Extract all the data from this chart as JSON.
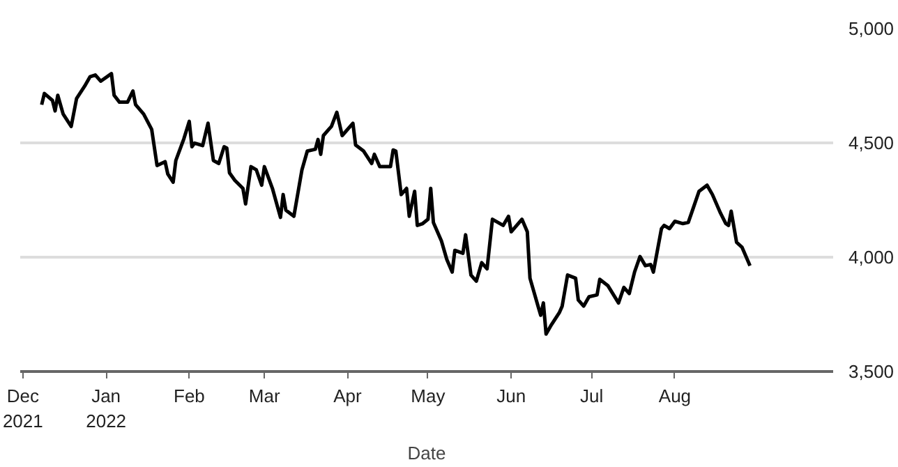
{
  "chart_data": {
    "type": "line",
    "xlabel": "Date",
    "x": [
      "2021-12-08",
      "2021-12-09",
      "2021-12-12",
      "2021-12-13",
      "2021-12-14",
      "2021-12-16",
      "2021-12-19",
      "2021-12-21",
      "2021-12-24",
      "2021-12-26",
      "2021-12-28",
      "2021-12-30",
      "2022-01-03",
      "2022-01-04",
      "2022-01-06",
      "2022-01-09",
      "2022-01-11",
      "2022-01-12",
      "2022-01-15",
      "2022-01-18",
      "2022-01-20",
      "2022-01-23",
      "2022-01-24",
      "2022-01-26",
      "2022-01-27",
      "2022-01-30",
      "2022-02-01",
      "2022-02-02",
      "2022-02-03",
      "2022-02-06",
      "2022-02-08",
      "2022-02-10",
      "2022-02-12",
      "2022-02-14",
      "2022-02-15",
      "2022-02-16",
      "2022-02-18",
      "2022-02-21",
      "2022-02-22",
      "2022-02-24",
      "2022-02-26",
      "2022-02-28",
      "2022-03-01",
      "2022-03-04",
      "2022-03-07",
      "2022-03-08",
      "2022-03-09",
      "2022-03-12",
      "2022-03-15",
      "2022-03-17",
      "2022-03-20",
      "2022-03-21",
      "2022-03-22",
      "2022-03-23",
      "2022-03-25",
      "2022-03-26",
      "2022-03-28",
      "2022-03-30",
      "2022-04-03",
      "2022-04-04",
      "2022-04-07",
      "2022-04-10",
      "2022-04-11",
      "2022-04-13",
      "2022-04-17",
      "2022-04-18",
      "2022-04-19",
      "2022-04-21",
      "2022-04-23",
      "2022-04-24",
      "2022-04-26",
      "2022-04-27",
      "2022-04-29",
      "2022-05-01",
      "2022-05-02",
      "2022-05-03",
      "2022-05-06",
      "2022-05-08",
      "2022-05-10",
      "2022-05-11",
      "2022-05-14",
      "2022-05-15",
      "2022-05-17",
      "2022-05-19",
      "2022-05-21",
      "2022-05-23",
      "2022-05-25",
      "2022-05-29",
      "2022-05-31",
      "2022-06-01",
      "2022-06-05",
      "2022-06-07",
      "2022-06-08",
      "2022-06-11",
      "2022-06-12",
      "2022-06-13",
      "2022-06-14",
      "2022-06-16",
      "2022-06-19",
      "2022-06-20",
      "2022-06-22",
      "2022-06-25",
      "2022-06-26",
      "2022-06-28",
      "2022-06-30",
      "2022-07-03",
      "2022-07-04",
      "2022-07-07",
      "2022-07-11",
      "2022-07-13",
      "2022-07-15",
      "2022-07-17",
      "2022-07-19",
      "2022-07-21",
      "2022-07-23",
      "2022-07-24",
      "2022-07-27",
      "2022-07-28",
      "2022-07-30",
      "2022-08-01",
      "2022-08-04",
      "2022-08-06",
      "2022-08-08",
      "2022-08-10",
      "2022-08-13",
      "2022-08-15",
      "2022-08-18",
      "2022-08-20",
      "2022-08-21",
      "2022-08-22",
      "2022-08-24",
      "2022-08-26",
      "2022-08-29"
    ],
    "series": [
      {
        "color": "#000000",
        "values": [
          4667,
          4716,
          4686,
          4640,
          4708,
          4626,
          4572,
          4694,
          4748,
          4789,
          4797,
          4770,
          4803,
          4708,
          4678,
          4678,
          4727,
          4667,
          4626,
          4559,
          4401,
          4418,
          4364,
          4328,
          4423,
          4518,
          4594,
          4483,
          4499,
          4488,
          4586,
          4423,
          4410,
          4483,
          4477,
          4369,
          4336,
          4301,
          4233,
          4396,
          4382,
          4315,
          4396,
          4301,
          4174,
          4274,
          4206,
          4179,
          4382,
          4464,
          4472,
          4515,
          4450,
          4532,
          4559,
          4572,
          4634,
          4532,
          4586,
          4491,
          4464,
          4410,
          4450,
          4396,
          4396,
          4469,
          4464,
          4274,
          4301,
          4179,
          4288,
          4139,
          4147,
          4166,
          4301,
          4152,
          4071,
          3990,
          3935,
          4030,
          4017,
          4098,
          3922,
          3895,
          3976,
          3949,
          4166,
          4139,
          4179,
          4111,
          4166,
          4111,
          3908,
          3786,
          3746,
          3800,
          3664,
          3705,
          3759,
          3786,
          3922,
          3908,
          3813,
          3786,
          3827,
          3835,
          3903,
          3876,
          3800,
          3868,
          3841,
          3936,
          4003,
          3963,
          3968,
          3935,
          4125,
          4139,
          4125,
          4157,
          4147,
          4152,
          4220,
          4288,
          4315,
          4274,
          4193,
          4147,
          4139,
          4201,
          4065,
          4044,
          3963
        ]
      }
    ],
    "xlim": [
      "2021-11-30",
      "2022-09-29"
    ],
    "xticks": [
      {
        "value": "2021-12-01",
        "label": "Dec\n2021"
      },
      {
        "value": "2022-01-01",
        "label": "Jan\n2022"
      },
      {
        "value": "2022-02-01",
        "label": "Feb"
      },
      {
        "value": "2022-03-01",
        "label": "Mar"
      },
      {
        "value": "2022-04-01",
        "label": "Apr"
      },
      {
        "value": "2022-05-01",
        "label": "May"
      },
      {
        "value": "2022-06-01",
        "label": "Jun"
      },
      {
        "value": "2022-07-01",
        "label": "Jul"
      },
      {
        "value": "2022-08-01",
        "label": "Aug"
      }
    ],
    "ylim": [
      3500,
      5000
    ],
    "yticks": [
      {
        "value": 3500,
        "label": "3,500"
      },
      {
        "value": 4000,
        "label": "4,000"
      },
      {
        "value": 4500,
        "label": "4,500"
      },
      {
        "value": 5000,
        "label": "5,000"
      }
    ],
    "grid": "y",
    "line_style": "solid",
    "marker": "none"
  }
}
